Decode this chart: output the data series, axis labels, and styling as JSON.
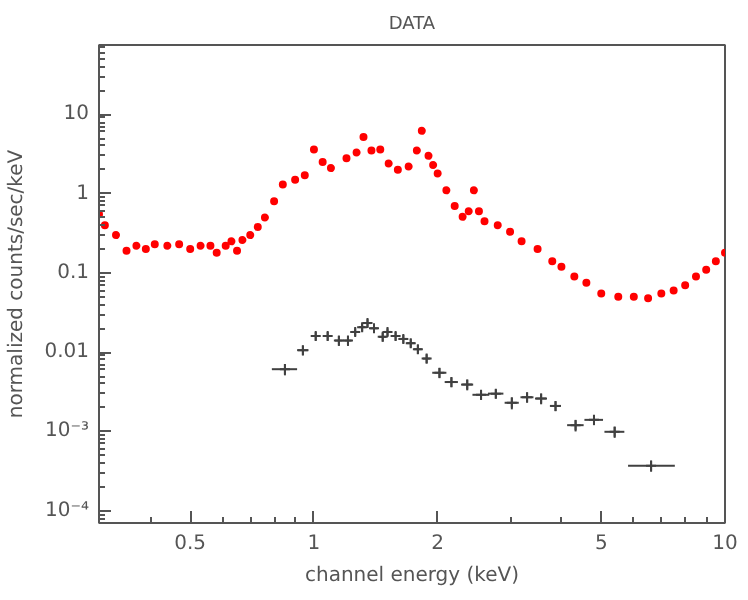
{
  "chart_data": {
    "type": "scatter",
    "title": "DATA",
    "xlabel": "channel energy (keV)",
    "ylabel": "normalized counts/sec/keV",
    "log": "xy",
    "grid": false,
    "xlim": [
      0.3,
      10
    ],
    "ylim": [
      7e-05,
      75
    ],
    "xticks": [
      0.5,
      1,
      2,
      5,
      10
    ],
    "yticks": [
      {
        "value": 0.0001,
        "label": "10⁻⁴"
      },
      {
        "value": 0.001,
        "label": "10⁻³"
      },
      0.01,
      0.1,
      1,
      10
    ],
    "series": [
      {
        "color": "#ff0000",
        "marker": "circle",
        "x": [
          0.3,
          0.31,
          0.33,
          0.35,
          0.37,
          0.39,
          0.41,
          0.44,
          0.47,
          0.5,
          0.53,
          0.56,
          0.58,
          0.61,
          0.63,
          0.65,
          0.67,
          0.7,
          0.73,
          0.76,
          0.8,
          0.84,
          0.9,
          0.95,
          1.0,
          1.05,
          1.1,
          1.2,
          1.27,
          1.32,
          1.38,
          1.45,
          1.52,
          1.6,
          1.7,
          1.78,
          1.83,
          1.9,
          1.95,
          2.0,
          2.1,
          2.2,
          2.3,
          2.38,
          2.45,
          2.52,
          2.6,
          2.8,
          3.0,
          3.2,
          3.5,
          3.8,
          4.0,
          4.3,
          4.6,
          5.0,
          5.5,
          6.0,
          6.5,
          7.0,
          7.5,
          8.0,
          8.5,
          9.0,
          9.5,
          10.0
        ],
        "values": [
          0.55,
          0.4,
          0.3,
          0.19,
          0.22,
          0.2,
          0.23,
          0.22,
          0.23,
          0.2,
          0.22,
          0.22,
          0.18,
          0.22,
          0.25,
          0.19,
          0.26,
          0.3,
          0.38,
          0.5,
          0.8,
          1.3,
          1.5,
          1.7,
          3.6,
          2.5,
          2.1,
          2.8,
          3.3,
          5.2,
          3.5,
          3.6,
          2.4,
          2.0,
          2.2,
          3.5,
          6.2,
          3.0,
          2.3,
          1.8,
          1.1,
          0.7,
          0.51,
          0.6,
          1.1,
          0.6,
          0.45,
          0.4,
          0.33,
          0.25,
          0.2,
          0.14,
          0.12,
          0.09,
          0.075,
          0.055,
          0.05,
          0.05,
          0.048,
          0.055,
          0.06,
          0.07,
          0.09,
          0.11,
          0.14,
          0.18
        ]
      },
      {
        "color": "#404040",
        "marker": "cross",
        "x": [
          0.85,
          0.94,
          1.01,
          1.08,
          1.15,
          1.21,
          1.26,
          1.31,
          1.35,
          1.4,
          1.47,
          1.51,
          1.58,
          1.65,
          1.72,
          1.79,
          1.88,
          2.02,
          2.16,
          2.36,
          2.55,
          2.77,
          3.03,
          3.3,
          3.57,
          3.87,
          4.33,
          4.8,
          5.39,
          6.61
        ],
        "values": [
          0.0061,
          0.0106,
          0.016,
          0.016,
          0.014,
          0.014,
          0.018,
          0.0207,
          0.0233,
          0.02,
          0.0156,
          0.018,
          0.016,
          0.0147,
          0.013,
          0.0109,
          0.0083,
          0.0055,
          0.0042,
          0.0039,
          0.0029,
          0.003,
          0.0023,
          0.0027,
          0.0026,
          0.0021,
          0.0012,
          0.0014,
          0.00099,
          0.00037
        ],
        "errors": [
          0.001,
          0.0015,
          0.002,
          0.002,
          0.002,
          0.002,
          0.002,
          0.0025,
          0.0028,
          0.0025,
          0.002,
          0.002,
          0.002,
          0.0018,
          0.0016,
          0.0014,
          0.0011,
          0.0008,
          0.0006,
          0.0006,
          0.0004,
          0.0004,
          0.0004,
          0.0004,
          0.0004,
          0.0003,
          0.0002,
          0.0002,
          0.00016,
          6e-05
        ],
        "xerrors": [
          [
            0.79,
            0.91
          ],
          0.03,
          0.025,
          0.025,
          0.025,
          0.025,
          0.025,
          0.025,
          0.03,
          0.03,
          0.03,
          0.03,
          0.03,
          0.04,
          0.04,
          0.04,
          0.04,
          0.08,
          0.08,
          0.08,
          0.12,
          0.12,
          0.12,
          0.12,
          0.12,
          0.12,
          0.2,
          0.25,
          0.3,
          [
            5.81,
            7.55
          ]
        ]
      }
    ]
  }
}
